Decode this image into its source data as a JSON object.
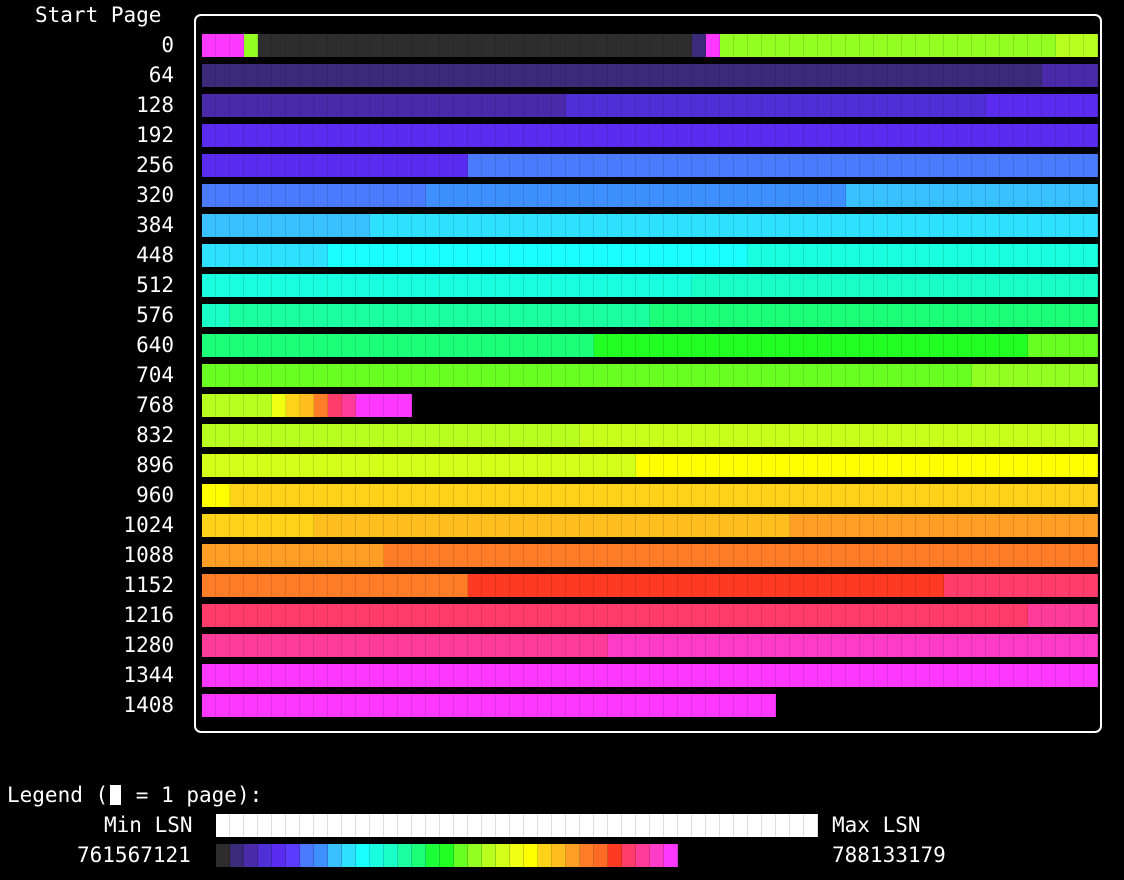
{
  "header_label": "Start Page",
  "palette": [
    "#2d2d2d",
    "#3b2a7a",
    "#4a2aa8",
    "#4f2fd6",
    "#5a2cf0",
    "#5b3cff",
    "#4a7bff",
    "#3fa0ff",
    "#38c0ff",
    "#2fe0ff",
    "#1affff",
    "#1affe0",
    "#1affc8",
    "#1bffa0",
    "#1cff78",
    "#1cff38",
    "#22ff22",
    "#6aff22",
    "#94ff22",
    "#b8ff20",
    "#d4ff1a",
    "#f2ff12",
    "#ffff00",
    "#ffd21a",
    "#ffbe20",
    "#ff9e24",
    "#ff7d26",
    "#ff6a24",
    "#ff3a22",
    "#ff3c6a",
    "#ff3c9a",
    "#ff3cc8",
    "#ff38ff"
  ],
  "rows": [
    {
      "label": "0",
      "segments": [
        {
          "c": "#ff38ff",
          "n": 3
        },
        {
          "c": "#94ff22",
          "n": 1
        },
        {
          "c": "#2d2d2d",
          "n": 31
        },
        {
          "c": "#3b2a7a",
          "n": 1
        },
        {
          "c": "#ff38ff",
          "n": 1
        },
        {
          "c": "#94ff22",
          "n": 24
        },
        {
          "c": "#b8ff20",
          "n": 3
        }
      ]
    },
    {
      "label": "64",
      "segments": [
        {
          "c": "#3b2a7a",
          "n": 60
        },
        {
          "c": "#4a2aa8",
          "n": 4
        }
      ]
    },
    {
      "label": "128",
      "segments": [
        {
          "c": "#4a2aa8",
          "n": 26
        },
        {
          "c": "#4f2fd6",
          "n": 30
        },
        {
          "c": "#5a2cf0",
          "n": 8
        }
      ]
    },
    {
      "label": "192",
      "segments": [
        {
          "c": "#5a2cf0",
          "n": 64
        }
      ]
    },
    {
      "label": "256",
      "segments": [
        {
          "c": "#5a2cf0",
          "n": 19
        },
        {
          "c": "#4a7bff",
          "n": 45
        }
      ]
    },
    {
      "label": "320",
      "segments": [
        {
          "c": "#4a7bff",
          "n": 16
        },
        {
          "c": "#3f90ff",
          "n": 30
        },
        {
          "c": "#38c0ff",
          "n": 18
        }
      ]
    },
    {
      "label": "384",
      "segments": [
        {
          "c": "#38c0ff",
          "n": 12
        },
        {
          "c": "#2fe0ff",
          "n": 52
        }
      ]
    },
    {
      "label": "448",
      "segments": [
        {
          "c": "#2fe0ff",
          "n": 9
        },
        {
          "c": "#1affff",
          "n": 30
        },
        {
          "c": "#1affe0",
          "n": 25
        }
      ]
    },
    {
      "label": "512",
      "segments": [
        {
          "c": "#1affe0",
          "n": 35
        },
        {
          "c": "#1affc8",
          "n": 29
        }
      ]
    },
    {
      "label": "576",
      "segments": [
        {
          "c": "#1affc8",
          "n": 2
        },
        {
          "c": "#1bffa0",
          "n": 30
        },
        {
          "c": "#1cff78",
          "n": 32
        }
      ]
    },
    {
      "label": "640",
      "segments": [
        {
          "c": "#1cff78",
          "n": 28
        },
        {
          "c": "#22ff22",
          "n": 31
        },
        {
          "c": "#6aff22",
          "n": 5
        }
      ]
    },
    {
      "label": "704",
      "segments": [
        {
          "c": "#6aff22",
          "n": 55
        },
        {
          "c": "#94ff22",
          "n": 9
        }
      ]
    },
    {
      "label": "768",
      "segments": [
        {
          "c": "#b8ff20",
          "n": 5
        },
        {
          "c": "#f2ff12",
          "n": 1
        },
        {
          "c": "#ffd21a",
          "n": 1
        },
        {
          "c": "#ffbe20",
          "n": 1
        },
        {
          "c": "#ff7d26",
          "n": 1
        },
        {
          "c": "#ff3c6a",
          "n": 1
        },
        {
          "c": "#ff3c9a",
          "n": 1
        },
        {
          "c": "#ff38ff",
          "n": 4
        }
      ]
    },
    {
      "label": "832",
      "segments": [
        {
          "c": "#b8ff20",
          "n": 27
        },
        {
          "c": "#c8ff1c",
          "n": 37
        }
      ]
    },
    {
      "label": "896",
      "segments": [
        {
          "c": "#d4ff1a",
          "n": 31
        },
        {
          "c": "#ffff00",
          "n": 33
        }
      ]
    },
    {
      "label": "960",
      "segments": [
        {
          "c": "#ffff00",
          "n": 2
        },
        {
          "c": "#ffd21a",
          "n": 62
        }
      ]
    },
    {
      "label": "1024",
      "segments": [
        {
          "c": "#ffd21a",
          "n": 8
        },
        {
          "c": "#ffbe20",
          "n": 34
        },
        {
          "c": "#ff9e24",
          "n": 22
        }
      ]
    },
    {
      "label": "1088",
      "segments": [
        {
          "c": "#ff9e24",
          "n": 13
        },
        {
          "c": "#ff7d26",
          "n": 51
        }
      ]
    },
    {
      "label": "1152",
      "segments": [
        {
          "c": "#ff7d26",
          "n": 19
        },
        {
          "c": "#ff3a22",
          "n": 34
        },
        {
          "c": "#ff3c6a",
          "n": 11
        }
      ]
    },
    {
      "label": "1216",
      "segments": [
        {
          "c": "#ff3c6a",
          "n": 59
        },
        {
          "c": "#ff3c9a",
          "n": 5
        }
      ]
    },
    {
      "label": "1280",
      "segments": [
        {
          "c": "#ff3c9a",
          "n": 29
        },
        {
          "c": "#ff3cc8",
          "n": 35
        }
      ]
    },
    {
      "label": "1344",
      "segments": [
        {
          "c": "#ff38ff",
          "n": 64
        }
      ]
    },
    {
      "label": "1408",
      "segments": [
        {
          "c": "#ff38ff",
          "n": 41
        }
      ]
    }
  ],
  "legend": {
    "title_prefix": "Legend (",
    "title_suffix": " = 1 page):",
    "min_label": "Min LSN",
    "max_label": "Max LSN",
    "min_value": "761567121",
    "max_value": "788133179",
    "gradient": [
      "#2d2d2d",
      "#3b2a7a",
      "#4a2aa8",
      "#4f2fd6",
      "#5a2cf0",
      "#5b3cff",
      "#4a7bff",
      "#3f90ff",
      "#38c0ff",
      "#2fe0ff",
      "#1affff",
      "#1affe0",
      "#1affc8",
      "#1bffa0",
      "#1cff78",
      "#1cff38",
      "#22ff22",
      "#6aff22",
      "#94ff22",
      "#b8ff20",
      "#d4ff1a",
      "#f2ff12",
      "#ffff00",
      "#ffd21a",
      "#ffbe20",
      "#ff9e24",
      "#ff7d26",
      "#ff6a24",
      "#ff3a22",
      "#ff3c6a",
      "#ff3c9a",
      "#ff3cc8",
      "#ff38ff"
    ]
  }
}
